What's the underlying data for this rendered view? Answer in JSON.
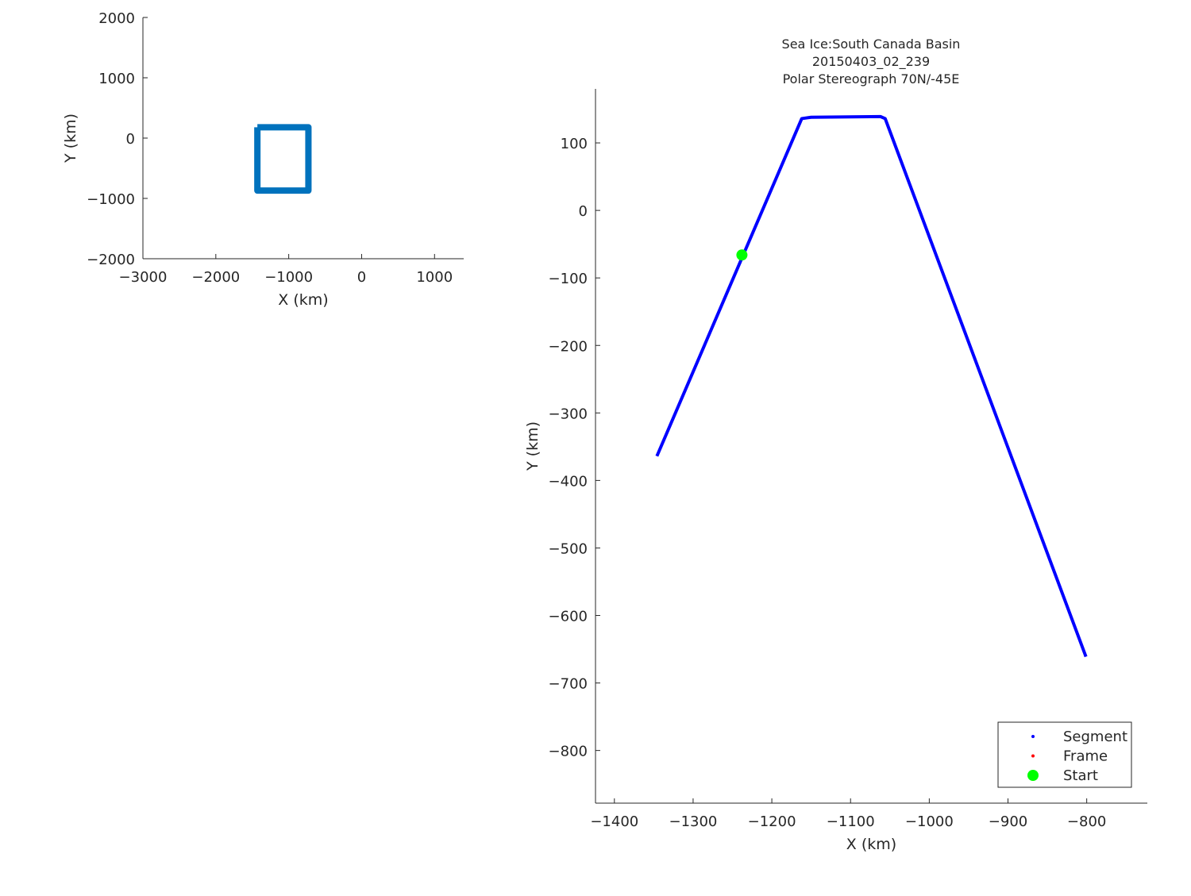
{
  "chart_data": [
    {
      "type": "line",
      "title": "",
      "xlabel": "X (km)",
      "ylabel": "Y (km)",
      "xlim": [
        -3000,
        1400
      ],
      "ylim": [
        -2000,
        2000
      ],
      "xticks": [
        -3000,
        -2000,
        -1000,
        0,
        1000
      ],
      "yticks": [
        -2000,
        -1000,
        0,
        1000,
        2000
      ],
      "grid": false,
      "color": "#0072BD",
      "series": [
        {
          "x": [
            -1430,
            -730,
            -730,
            -1430,
            -1430
          ],
          "y": [
            180,
            180,
            -870,
            -870,
            180
          ]
        }
      ]
    },
    {
      "type": "line",
      "title": [
        "Sea Ice:South Canada Basin",
        "20150403_02_239",
        "Polar Stereograph 70N/-45E"
      ],
      "xlabel": "X (km)",
      "ylabel": "Y (km)",
      "xlim": [
        -1424,
        -723
      ],
      "ylim": [
        -878,
        180
      ],
      "xticks": [
        -1400,
        -1300,
        -1200,
        -1100,
        -1000,
        -900,
        -800
      ],
      "yticks": [
        -800,
        -700,
        -600,
        -500,
        -400,
        -300,
        -200,
        -100,
        0,
        100
      ],
      "grid": false,
      "legend_placement": "bottom-right",
      "series": [
        {
          "name": "Segment",
          "color": "#0000FF",
          "x": [
            -1346,
            -1162,
            -1150,
            -1062,
            -1056,
            -801
          ],
          "y": [
            -364,
            136,
            138,
            139,
            136,
            -661
          ]
        },
        {
          "name": "Frame",
          "color": "#FF0000",
          "x": [],
          "y": []
        },
        {
          "name": "Start",
          "color": "#00FF00",
          "x": [
            -1238
          ],
          "y": [
            -66
          ]
        }
      ]
    }
  ]
}
